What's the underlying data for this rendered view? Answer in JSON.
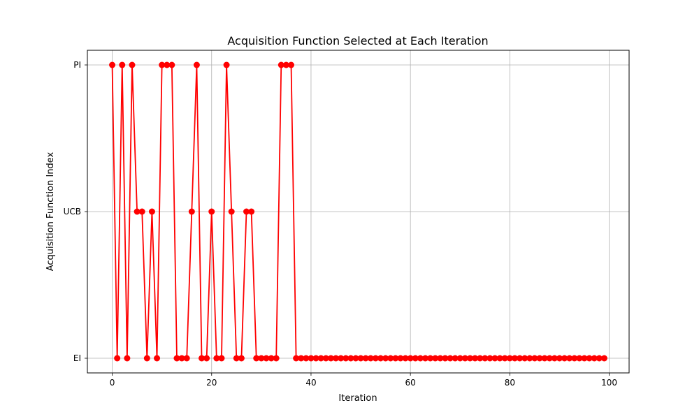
{
  "chart_data": {
    "type": "line",
    "title": "Acquisition Function Selected at Each Iteration",
    "xlabel": "Iteration",
    "ylabel": "Acquisition Function Index",
    "xlim": [
      -5,
      104
    ],
    "ylim": [
      -0.1,
      2.1
    ],
    "xticks": [
      0,
      20,
      40,
      60,
      80,
      100
    ],
    "yticks": [
      {
        "value": 0,
        "label": "EI"
      },
      {
        "value": 1,
        "label": "UCB"
      },
      {
        "value": 2,
        "label": "PI"
      }
    ],
    "grid": true,
    "legend": "none",
    "series": [
      {
        "color": "#ff0000",
        "marker": "circle",
        "x": [
          0,
          1,
          2,
          3,
          4,
          5,
          6,
          7,
          8,
          9,
          10,
          11,
          12,
          13,
          14,
          15,
          16,
          17,
          18,
          19,
          20,
          21,
          22,
          23,
          24,
          25,
          26,
          27,
          28,
          29,
          30,
          31,
          32,
          33,
          34,
          35,
          36,
          37,
          38,
          39,
          40,
          41,
          42,
          43,
          44,
          45,
          46,
          47,
          48,
          49,
          50,
          51,
          52,
          53,
          54,
          55,
          56,
          57,
          58,
          59,
          60,
          61,
          62,
          63,
          64,
          65,
          66,
          67,
          68,
          69,
          70,
          71,
          72,
          73,
          74,
          75,
          76,
          77,
          78,
          79,
          80,
          81,
          82,
          83,
          84,
          85,
          86,
          87,
          88,
          89,
          90,
          91,
          92,
          93,
          94,
          95,
          96,
          97,
          98,
          99
        ],
        "y": [
          2,
          0,
          2,
          0,
          2,
          1,
          1,
          0,
          1,
          0,
          2,
          2,
          2,
          0,
          0,
          0,
          1,
          2,
          0,
          0,
          1,
          0,
          0,
          2,
          1,
          0,
          0,
          1,
          1,
          0,
          0,
          0,
          0,
          0,
          2,
          2,
          2,
          0,
          0,
          0,
          0,
          0,
          0,
          0,
          0,
          0,
          0,
          0,
          0,
          0,
          0,
          0,
          0,
          0,
          0,
          0,
          0,
          0,
          0,
          0,
          0,
          0,
          0,
          0,
          0,
          0,
          0,
          0,
          0,
          0,
          0,
          0,
          0,
          0,
          0,
          0,
          0,
          0,
          0,
          0,
          0,
          0,
          0,
          0,
          0,
          0,
          0,
          0,
          0,
          0,
          0,
          0,
          0,
          0,
          0,
          0,
          0,
          0,
          0,
          0
        ]
      }
    ]
  }
}
